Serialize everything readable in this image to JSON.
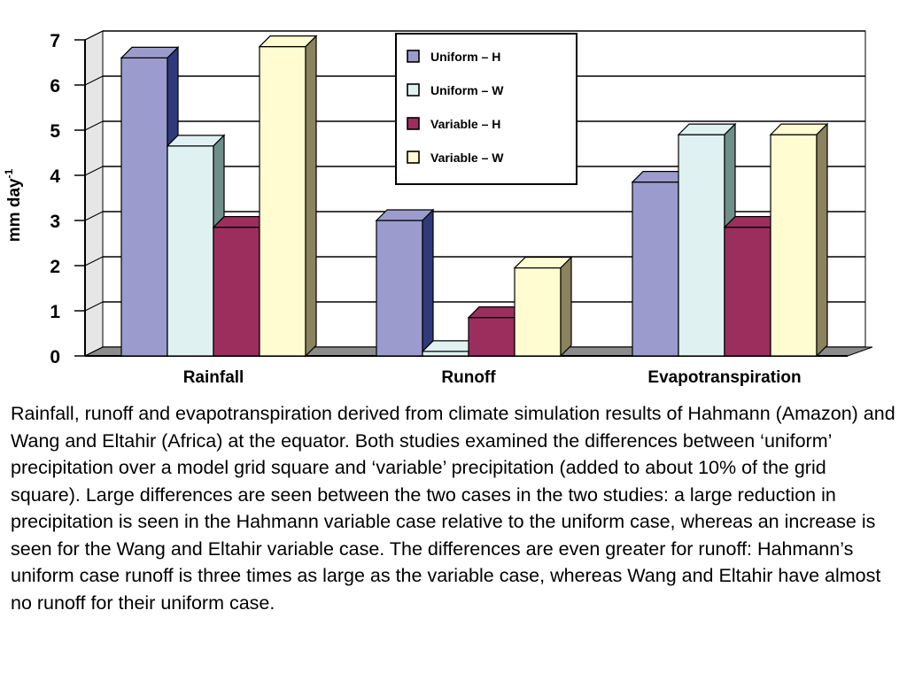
{
  "chart_data": {
    "type": "bar",
    "ylabel": "mm day",
    "ylabel_superscript": "-1",
    "ylim": [
      0,
      7
    ],
    "yticks": [
      "0",
      "1",
      "2",
      "3",
      "4",
      "5",
      "6",
      "7"
    ],
    "grid": true,
    "legend_position": "top-right",
    "categories": [
      "Rainfall",
      "Runoff",
      "Evapotranspiration"
    ],
    "series": [
      {
        "name": "Uniform – H",
        "values": [
          6.6,
          3.0,
          3.85
        ],
        "color": "#9b9ccd",
        "side_color": "#2f3a7a"
      },
      {
        "name": "Uniform – W",
        "values": [
          4.65,
          0.1,
          4.9
        ],
        "color": "#e0f1f2",
        "side_color": "#6f8f89"
      },
      {
        "name": "Variable – H",
        "values": [
          2.85,
          0.85,
          2.85
        ],
        "color": "#9c2e5e",
        "side_color": "#5e1232"
      },
      {
        "name": "Variable – W",
        "values": [
          6.85,
          1.95,
          4.9
        ],
        "color": "#fffcd2",
        "side_color": "#8a835e"
      }
    ]
  },
  "caption": "Rainfall, runoff and evapotranspiration derived from climate simulation results of Hahmann (Amazon) and Wang and Eltahir (Africa) at the equator. Both studies examined the differences between ‘uniform’ precipitation over a model grid square and ‘variable’ precipitation (added to about 10% of the grid square). Large differences are seen between the two cases in the two studies: a large reduction in precipitation is seen in the Hahmann variable case relative to the uniform case, whereas an increase is seen for the Wang and Eltahir variable case. The differences are even greater for runoff: Hahmann’s uniform case runoff is three times as large as the variable case, whereas Wang and Eltahir have almost no runoff for their uniform case."
}
